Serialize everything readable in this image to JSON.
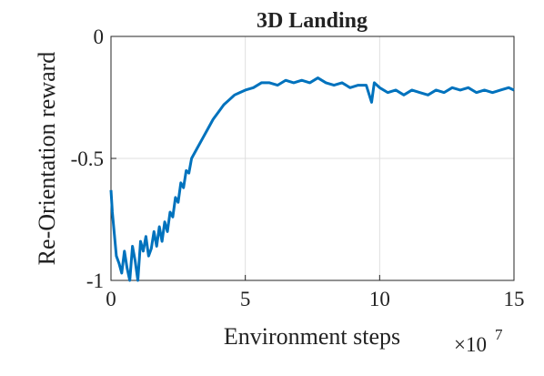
{
  "chart_data": {
    "type": "line",
    "title": "3D Landing",
    "x_label": "Environment steps",
    "y_label": "Re-Orientation reward",
    "x_scale_base": "×10",
    "x_scale_exponent": "7",
    "xlim": [
      0,
      15
    ],
    "xticks": [
      0,
      5,
      10,
      15
    ],
    "ylim": [
      -1,
      0
    ],
    "yticks": [
      -1,
      -0.5,
      0
    ],
    "grid": true,
    "x": [
      0,
      0.05,
      0.1,
      0.2,
      0.3,
      0.4,
      0.5,
      0.6,
      0.7,
      0.8,
      0.9,
      1.0,
      1.1,
      1.2,
      1.3,
      1.4,
      1.5,
      1.6,
      1.7,
      1.8,
      1.9,
      2.0,
      2.1,
      2.2,
      2.3,
      2.4,
      2.5,
      2.6,
      2.7,
      2.8,
      2.9,
      3.0,
      3.2,
      3.4,
      3.6,
      3.8,
      4.0,
      4.2,
      4.4,
      4.6,
      4.8,
      5.0,
      5.3,
      5.6,
      5.9,
      6.2,
      6.5,
      6.8,
      7.1,
      7.4,
      7.7,
      8.0,
      8.3,
      8.6,
      8.9,
      9.2,
      9.5,
      9.7,
      9.8,
      10.0,
      10.3,
      10.6,
      10.9,
      11.2,
      11.5,
      11.8,
      12.1,
      12.4,
      12.7,
      13.0,
      13.3,
      13.6,
      13.9,
      14.2,
      14.5,
      14.8,
      15.0
    ],
    "series": [
      {
        "color": "#0072bd",
        "values": [
          -0.63,
          -0.72,
          -0.78,
          -0.9,
          -0.93,
          -0.97,
          -0.88,
          -0.95,
          -1.0,
          -0.86,
          -0.92,
          -1.0,
          -0.84,
          -0.88,
          -0.82,
          -0.9,
          -0.87,
          -0.8,
          -0.86,
          -0.78,
          -0.84,
          -0.76,
          -0.8,
          -0.72,
          -0.74,
          -0.66,
          -0.68,
          -0.6,
          -0.62,
          -0.55,
          -0.56,
          -0.5,
          -0.46,
          -0.42,
          -0.38,
          -0.34,
          -0.31,
          -0.28,
          -0.26,
          -0.24,
          -0.23,
          -0.22,
          -0.21,
          -0.19,
          -0.19,
          -0.2,
          -0.18,
          -0.19,
          -0.18,
          -0.19,
          -0.17,
          -0.19,
          -0.2,
          -0.19,
          -0.21,
          -0.2,
          -0.2,
          -0.27,
          -0.19,
          -0.21,
          -0.23,
          -0.22,
          -0.24,
          -0.22,
          -0.23,
          -0.24,
          -0.22,
          -0.23,
          -0.21,
          -0.22,
          -0.21,
          -0.23,
          -0.22,
          -0.23,
          -0.22,
          -0.21,
          -0.22
        ]
      }
    ]
  }
}
